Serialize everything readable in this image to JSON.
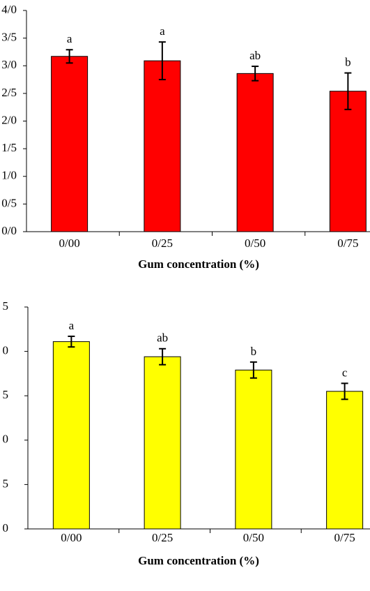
{
  "chart_data": [
    {
      "type": "bar",
      "categories": [
        "0/00",
        "0/25",
        "0/50",
        "0/75"
      ],
      "values": [
        3.17,
        3.09,
        2.86,
        2.54
      ],
      "errors": [
        0.12,
        0.34,
        0.13,
        0.33
      ],
      "annotations": [
        "a",
        "a",
        "ab",
        "b"
      ],
      "color": "#ff0000",
      "x_label": "Gum concentration (%)",
      "ylim": [
        0,
        4
      ],
      "yticks": [
        {
          "value": 0,
          "label": "0/0"
        },
        {
          "value": 0.5,
          "label": "0/5"
        },
        {
          "value": 1,
          "label": "1/0"
        },
        {
          "value": 1.5,
          "label": "1/5"
        },
        {
          "value": 2,
          "label": "2/0"
        },
        {
          "value": 2.5,
          "label": "2/5"
        },
        {
          "value": 3,
          "label": "3/0"
        },
        {
          "value": 3.5,
          "label": "3/5"
        },
        {
          "value": 4,
          "label": "4/0"
        }
      ]
    },
    {
      "type": "bar",
      "categories": [
        "0/00",
        "0/25",
        "0/50",
        "0/75"
      ],
      "values": [
        2.11,
        1.94,
        1.79,
        1.55
      ],
      "errors": [
        0.06,
        0.09,
        0.09,
        0.09
      ],
      "annotations": [
        "a",
        "ab",
        "b",
        "c"
      ],
      "color": "#ffff00",
      "x_label": "Gum concentration (%)",
      "ylim": [
        0,
        2.5
      ],
      "yticks": [
        0,
        {
          "value": 0.5,
          "label": "5"
        },
        {
          "value": 1,
          "label": "0"
        },
        {
          "value": 1.5,
          "label": "5"
        },
        {
          "value": 2,
          "label": "0"
        },
        {
          "value": 2.5,
          "label": "5"
        }
      ]
    }
  ]
}
